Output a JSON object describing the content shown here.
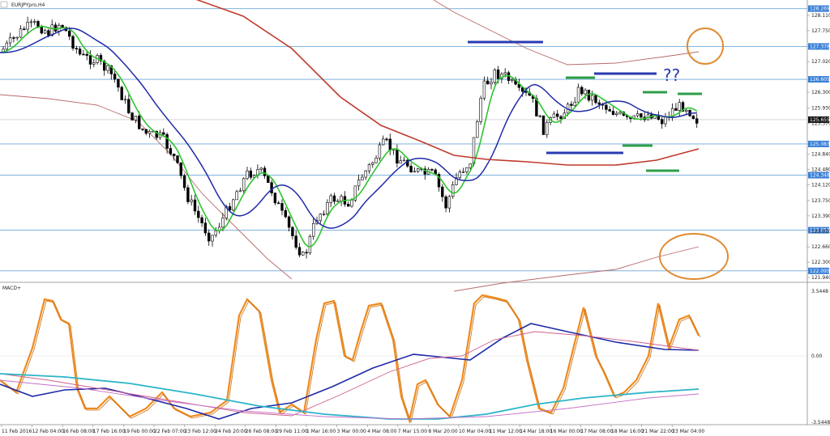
{
  "symbol_label": "EURJPYpro,H4",
  "indicator_label": "MACD+",
  "annotation_text": "??",
  "colors": {
    "background": "#ffffff",
    "grid_line": "#6fa8d8",
    "price_label_bg": "#3a7fd5",
    "current_label_bg": "#111111",
    "candle": "#000000",
    "ma_fast": "#2fc42f",
    "ma_mid": "#1e2aa8",
    "ma_slow": "#c0392b",
    "envelope": "#b86a6a",
    "macd_main": "#f08a1e",
    "macd_signal_a": "#1e2aa8",
    "macd_signal_b": "#d06090",
    "macd_cyan": "#2ab5c8",
    "annotation_blue": "#2a3ab0",
    "annotation_green": "#2e9e48",
    "circle": "#e08a30"
  },
  "price_axis": {
    "ticks": [
      "128.110",
      "127.750",
      "127.020",
      "126.300",
      "125.930",
      "125.570",
      "124.840",
      "124.480",
      "124.120",
      "123.750",
      "123.390",
      "123.030",
      "122.660",
      "122.300",
      "121.940"
    ]
  },
  "horizontal_levels": [
    {
      "price": "128.269"
    },
    {
      "price": "127.378"
    },
    {
      "price": "126.605"
    },
    {
      "price": "125.083"
    },
    {
      "price": "124.348"
    },
    {
      "price": "123.052"
    },
    {
      "price": "122.095"
    }
  ],
  "current_price": "125.655",
  "macd_axis": {
    "ticks": [
      "3.5448",
      "0.00",
      "-3.5448"
    ]
  },
  "time_axis": [
    "11 Feb 2016",
    "12 Feb 04:00",
    "16 Feb 08:00",
    "17 Feb 16:00",
    "19 Feb 00:00",
    "22 Feb 07:00",
    "23 Feb 12:00",
    "24 Feb 20:00",
    "26 Feb 08:00",
    "29 Feb 11:00",
    "1 Mar 16:00",
    "3 Mar 00:00",
    "4 Mar 08:00",
    "7 Mar 15:00",
    "8 Mar 20:00",
    "10 Mar 04:00",
    "11 Mar 12:00",
    "14 Mar 18:00",
    "16 Mar 00:00",
    "17 Mar 08:00",
    "18 Mar 16:00",
    "21 Mar 22:00",
    "23 Mar 04:00"
  ]
}
